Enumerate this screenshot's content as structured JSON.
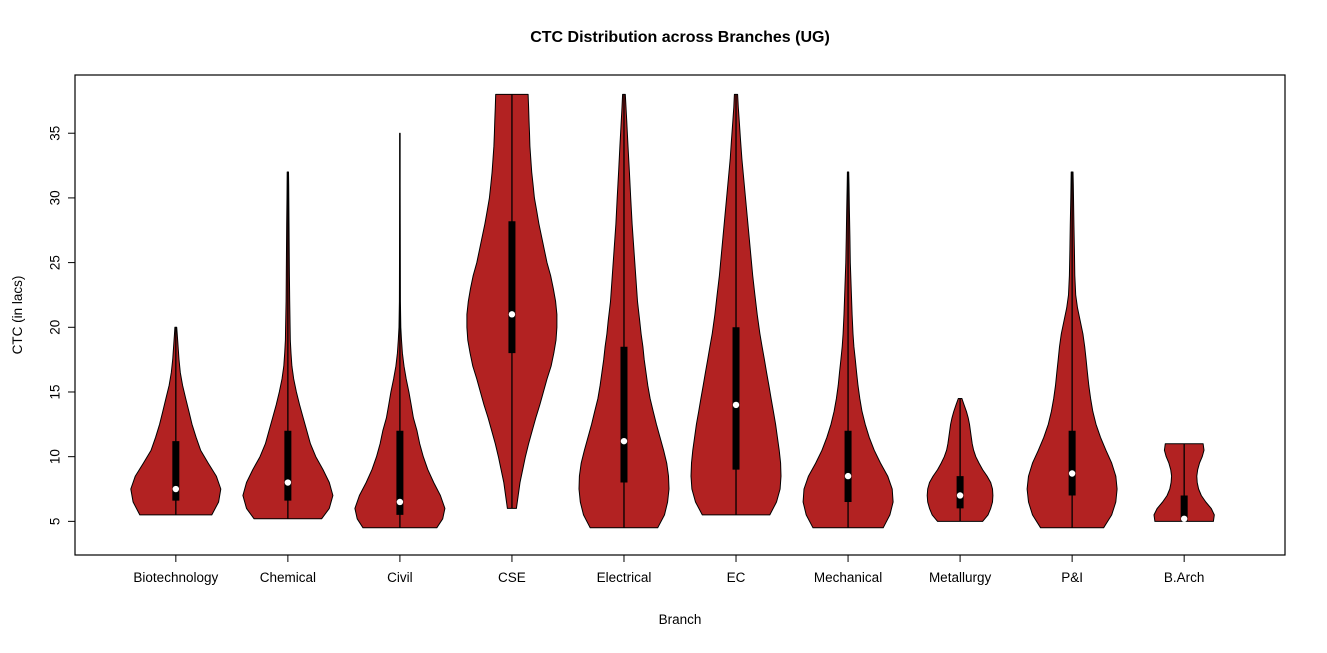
{
  "chart_data": {
    "type": "violin",
    "title": "CTC Distribution across Branches (UG)",
    "xlabel": "Branch",
    "ylabel": "CTC (in lacs)",
    "ylim": [
      2.4,
      39.5
    ],
    "yticks": [
      5,
      10,
      15,
      20,
      25,
      30,
      35
    ],
    "fill_color": "#b22222",
    "stroke_color": "#000000",
    "median_dot_color": "#ffffff",
    "legend": "none",
    "grid": "off",
    "categories": [
      "Biotechnology",
      "Chemical",
      "Civil",
      "CSE",
      "Electrical",
      "EC",
      "Mechanical",
      "Metallurgy",
      "P&I",
      "B.Arch"
    ],
    "series": [
      {
        "name": "Biotechnology",
        "stats": {
          "min": 5.5,
          "q1": 6.6,
          "median": 7.5,
          "q3": 11.2,
          "max": 20
        },
        "density": [
          [
            5.5,
            0.8
          ],
          [
            6.5,
            0.95
          ],
          [
            7.5,
            1.0
          ],
          [
            8.5,
            0.9
          ],
          [
            9.5,
            0.72
          ],
          [
            10.5,
            0.55
          ],
          [
            11.5,
            0.45
          ],
          [
            12.5,
            0.36
          ],
          [
            13.5,
            0.29
          ],
          [
            14.5,
            0.22
          ],
          [
            15.5,
            0.15
          ],
          [
            16.5,
            0.1
          ],
          [
            17.5,
            0.07
          ],
          [
            18.5,
            0.05
          ],
          [
            19.5,
            0.03
          ],
          [
            20,
            0.02
          ]
        ]
      },
      {
        "name": "Chemical",
        "stats": {
          "min": 5.2,
          "q1": 6.6,
          "median": 8,
          "q3": 12,
          "max": 32
        },
        "density": [
          [
            5.2,
            0.75
          ],
          [
            6,
            0.92
          ],
          [
            7,
            1.0
          ],
          [
            8,
            0.92
          ],
          [
            9,
            0.78
          ],
          [
            10,
            0.62
          ],
          [
            11,
            0.5
          ],
          [
            12,
            0.42
          ],
          [
            13,
            0.34
          ],
          [
            14,
            0.26
          ],
          [
            15,
            0.19
          ],
          [
            16,
            0.13
          ],
          [
            17,
            0.09
          ],
          [
            18,
            0.07
          ],
          [
            19,
            0.055
          ],
          [
            20,
            0.05
          ],
          [
            22,
            0.04
          ],
          [
            24,
            0.035
          ],
          [
            26,
            0.03
          ],
          [
            28,
            0.025
          ],
          [
            30,
            0.02
          ],
          [
            31,
            0.018
          ],
          [
            32,
            0.015
          ]
        ]
      },
      {
        "name": "Civil",
        "stats": {
          "min": 4.5,
          "q1": 5.5,
          "median": 6.5,
          "q3": 12,
          "max": 35
        },
        "density": [
          [
            4.5,
            0.82
          ],
          [
            5.2,
            0.95
          ],
          [
            6,
            1.0
          ],
          [
            7,
            0.9
          ],
          [
            8,
            0.75
          ],
          [
            9,
            0.62
          ],
          [
            10,
            0.52
          ],
          [
            11,
            0.44
          ],
          [
            12,
            0.38
          ],
          [
            13,
            0.3
          ],
          [
            14,
            0.25
          ],
          [
            15,
            0.2
          ],
          [
            16,
            0.14
          ],
          [
            17,
            0.09
          ],
          [
            18,
            0.055
          ],
          [
            19,
            0.035
          ],
          [
            20,
            0.02
          ],
          [
            22,
            0.012
          ],
          [
            25,
            0.008
          ],
          [
            28,
            0.006
          ],
          [
            31,
            0.005
          ],
          [
            34,
            0.004
          ],
          [
            35,
            0.004
          ]
        ]
      },
      {
        "name": "CSE",
        "stats": {
          "min": 6,
          "q1": 18,
          "median": 21,
          "q3": 28.2,
          "max": 38
        },
        "density": [
          [
            6,
            0.1
          ],
          [
            7,
            0.14
          ],
          [
            8,
            0.18
          ],
          [
            9,
            0.24
          ],
          [
            10,
            0.3
          ],
          [
            11,
            0.37
          ],
          [
            12,
            0.45
          ],
          [
            13,
            0.53
          ],
          [
            14,
            0.62
          ],
          [
            15,
            0.7
          ],
          [
            16,
            0.78
          ],
          [
            17,
            0.87
          ],
          [
            18,
            0.93
          ],
          [
            19,
            0.98
          ],
          [
            20,
            1.0
          ],
          [
            21,
            1.0
          ],
          [
            22,
            0.97
          ],
          [
            23,
            0.92
          ],
          [
            24,
            0.86
          ],
          [
            25,
            0.78
          ],
          [
            26,
            0.72
          ],
          [
            27,
            0.66
          ],
          [
            28,
            0.6
          ],
          [
            29,
            0.55
          ],
          [
            30,
            0.5
          ],
          [
            31,
            0.47
          ],
          [
            32,
            0.44
          ],
          [
            33,
            0.42
          ],
          [
            34,
            0.4
          ],
          [
            35,
            0.39
          ],
          [
            36,
            0.38
          ],
          [
            37,
            0.37
          ],
          [
            38,
            0.36
          ]
        ]
      },
      {
        "name": "Electrical",
        "stats": {
          "min": 4.5,
          "q1": 8,
          "median": 11.2,
          "q3": 18.5,
          "max": 38
        },
        "density": [
          [
            4.5,
            0.75
          ],
          [
            5.5,
            0.9
          ],
          [
            6.5,
            0.97
          ],
          [
            7.5,
            1.0
          ],
          [
            8.5,
            0.99
          ],
          [
            9.5,
            0.95
          ],
          [
            10.5,
            0.88
          ],
          [
            11.5,
            0.8
          ],
          [
            12.5,
            0.72
          ],
          [
            13.5,
            0.65
          ],
          [
            14.5,
            0.58
          ],
          [
            15.5,
            0.53
          ],
          [
            16.5,
            0.49
          ],
          [
            17.5,
            0.45
          ],
          [
            18.5,
            0.42
          ],
          [
            19.5,
            0.38
          ],
          [
            20.5,
            0.35
          ],
          [
            22,
            0.3
          ],
          [
            24,
            0.26
          ],
          [
            26,
            0.22
          ],
          [
            28,
            0.18
          ],
          [
            30,
            0.15
          ],
          [
            32,
            0.12
          ],
          [
            34,
            0.09
          ],
          [
            36,
            0.06
          ],
          [
            37,
            0.045
          ],
          [
            38,
            0.03
          ]
        ]
      },
      {
        "name": "EC",
        "stats": {
          "min": 5.5,
          "q1": 9,
          "median": 14,
          "q3": 20,
          "max": 38
        },
        "density": [
          [
            5.5,
            0.75
          ],
          [
            6.5,
            0.9
          ],
          [
            7.5,
            0.98
          ],
          [
            8.5,
            1.0
          ],
          [
            9.5,
            0.99
          ],
          [
            10.5,
            0.96
          ],
          [
            11.5,
            0.92
          ],
          [
            12.5,
            0.88
          ],
          [
            13.5,
            0.83
          ],
          [
            14.5,
            0.78
          ],
          [
            15.5,
            0.73
          ],
          [
            16.5,
            0.68
          ],
          [
            17.5,
            0.63
          ],
          [
            18.5,
            0.58
          ],
          [
            19.5,
            0.53
          ],
          [
            21,
            0.47
          ],
          [
            22.5,
            0.42
          ],
          [
            24,
            0.37
          ],
          [
            25.5,
            0.33
          ],
          [
            27,
            0.29
          ],
          [
            28.5,
            0.25
          ],
          [
            30,
            0.21
          ],
          [
            31.5,
            0.17
          ],
          [
            33,
            0.13
          ],
          [
            34.5,
            0.1
          ],
          [
            36,
            0.07
          ],
          [
            37,
            0.05
          ],
          [
            38,
            0.035
          ]
        ]
      },
      {
        "name": "Mechanical",
        "stats": {
          "min": 4.5,
          "q1": 6.5,
          "median": 8.5,
          "q3": 12,
          "max": 32
        },
        "density": [
          [
            4.5,
            0.78
          ],
          [
            5.5,
            0.93
          ],
          [
            6.5,
            1.0
          ],
          [
            7.5,
            0.98
          ],
          [
            8.5,
            0.88
          ],
          [
            9.5,
            0.72
          ],
          [
            10.5,
            0.58
          ],
          [
            11.5,
            0.47
          ],
          [
            12.5,
            0.38
          ],
          [
            13.5,
            0.31
          ],
          [
            14.5,
            0.26
          ],
          [
            15.5,
            0.22
          ],
          [
            16.5,
            0.19
          ],
          [
            17.5,
            0.16
          ],
          [
            18.5,
            0.13
          ],
          [
            19.5,
            0.11
          ],
          [
            21,
            0.09
          ],
          [
            23,
            0.07
          ],
          [
            25,
            0.05
          ],
          [
            27,
            0.04
          ],
          [
            29,
            0.03
          ],
          [
            31,
            0.02
          ],
          [
            32,
            0.015
          ]
        ]
      },
      {
        "name": "Metallurgy",
        "stats": {
          "min": 5,
          "q1": 6,
          "median": 7,
          "q3": 8.5,
          "max": 14.5
        },
        "density": [
          [
            5,
            0.5
          ],
          [
            5.5,
            0.62
          ],
          [
            6,
            0.68
          ],
          [
            6.5,
            0.72
          ],
          [
            7,
            0.73
          ],
          [
            7.5,
            0.72
          ],
          [
            8,
            0.68
          ],
          [
            8.5,
            0.6
          ],
          [
            9,
            0.5
          ],
          [
            9.5,
            0.42
          ],
          [
            10,
            0.35
          ],
          [
            10.5,
            0.3
          ],
          [
            11,
            0.27
          ],
          [
            11.5,
            0.25
          ],
          [
            12,
            0.23
          ],
          [
            12.5,
            0.21
          ],
          [
            13,
            0.18
          ],
          [
            13.5,
            0.14
          ],
          [
            14,
            0.09
          ],
          [
            14.5,
            0.04
          ]
        ]
      },
      {
        "name": "P&I",
        "stats": {
          "min": 4.5,
          "q1": 7,
          "median": 8.7,
          "q3": 12,
          "max": 32
        },
        "density": [
          [
            4.5,
            0.7
          ],
          [
            5.5,
            0.88
          ],
          [
            6.5,
            0.97
          ],
          [
            7.5,
            1.0
          ],
          [
            8.5,
            0.97
          ],
          [
            9.5,
            0.88
          ],
          [
            10.5,
            0.75
          ],
          [
            11.5,
            0.63
          ],
          [
            12.5,
            0.53
          ],
          [
            13.5,
            0.46
          ],
          [
            14.5,
            0.41
          ],
          [
            15.5,
            0.37
          ],
          [
            16.5,
            0.34
          ],
          [
            17.5,
            0.31
          ],
          [
            18.5,
            0.28
          ],
          [
            19.5,
            0.24
          ],
          [
            20.5,
            0.18
          ],
          [
            21.5,
            0.12
          ],
          [
            22.5,
            0.08
          ],
          [
            24,
            0.06
          ],
          [
            26,
            0.05
          ],
          [
            28,
            0.04
          ],
          [
            30,
            0.03
          ],
          [
            31,
            0.025
          ],
          [
            32,
            0.02
          ]
        ]
      },
      {
        "name": "B.Arch",
        "stats": {
          "min": 5,
          "q1": 5,
          "median": 5.2,
          "q3": 7,
          "max": 11
        },
        "density": [
          [
            5,
            0.65
          ],
          [
            5.5,
            0.67
          ],
          [
            6,
            0.6
          ],
          [
            6.5,
            0.48
          ],
          [
            7,
            0.38
          ],
          [
            7.5,
            0.32
          ],
          [
            8,
            0.29
          ],
          [
            8.5,
            0.28
          ],
          [
            9,
            0.3
          ],
          [
            9.5,
            0.34
          ],
          [
            10,
            0.4
          ],
          [
            10.5,
            0.44
          ],
          [
            11,
            0.42
          ]
        ]
      }
    ]
  }
}
